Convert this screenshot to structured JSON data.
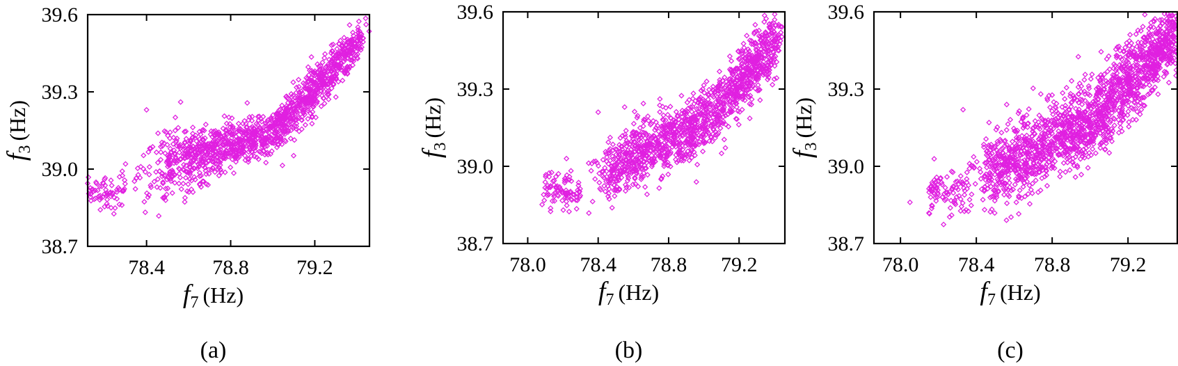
{
  "colors": {
    "marker": "#e020e0",
    "axis": "#000000"
  },
  "chart_data": [
    {
      "type": "scatter",
      "panel_label": "(a)",
      "xlabel": {
        "symbol": "f",
        "subscript": "7",
        "unit": "(Hz)"
      },
      "ylabel": {
        "symbol": "f",
        "subscript": "3",
        "unit": "(Hz)"
      },
      "xlim": [
        78.12,
        79.46
      ],
      "ylim": [
        38.7,
        39.6
      ],
      "xticks": [
        78.4,
        78.8,
        79.2
      ],
      "xtick_labels": [
        "78.4",
        "78.8",
        "79.2"
      ],
      "yticks": [
        38.7,
        39.0,
        39.3,
        39.6
      ],
      "ytick_labels": [
        "38.7",
        "39.0",
        "39.3",
        "39.6"
      ],
      "grid": false,
      "marker": "open-diamond",
      "point_count_estimate": 1500,
      "distribution": [
        {
          "x_range": [
            78.12,
            78.3
          ],
          "y_center": 38.92,
          "y_spread": 0.04,
          "density": "low"
        },
        {
          "x_range": [
            78.38,
            78.5
          ],
          "y_center": 38.95,
          "y_spread": 0.12,
          "density": "sparse"
        },
        {
          "x_range": [
            78.5,
            79.0
          ],
          "y_band": [
            38.88,
            39.22
          ],
          "density": "high"
        },
        {
          "x_range": [
            79.0,
            79.2
          ],
          "y_band": [
            39.05,
            39.38
          ],
          "density": "high"
        },
        {
          "x_range": [
            79.2,
            79.42
          ],
          "y_band": [
            39.3,
            39.5
          ],
          "density": "high"
        }
      ],
      "outliers": [
        [
          78.4,
          39.23
        ],
        [
          78.42,
          39.08
        ],
        [
          78.3,
          39.02
        ]
      ]
    },
    {
      "type": "scatter",
      "panel_label": "(b)",
      "xlabel": {
        "symbol": "f",
        "subscript": "7",
        "unit": "(Hz)"
      },
      "ylabel": {
        "symbol": "f",
        "subscript": "3",
        "unit": "(Hz)"
      },
      "xlim": [
        77.86,
        79.46
      ],
      "ylim": [
        38.7,
        39.6
      ],
      "xticks": [
        78.0,
        78.4,
        78.8,
        79.2
      ],
      "xtick_labels": [
        "78.0",
        "78.4",
        "78.8",
        "79.2"
      ],
      "yticks": [
        38.7,
        39.0,
        39.3,
        39.6
      ],
      "ytick_labels": [
        "38.7",
        "39.0",
        "39.3",
        "39.6"
      ],
      "grid": false,
      "marker": "open-diamond",
      "point_count_estimate": 1500,
      "distribution": [
        {
          "x_range": [
            78.08,
            78.3
          ],
          "y_center": 38.92,
          "y_spread": 0.04,
          "density": "low"
        },
        {
          "x_range": [
            78.38,
            78.5
          ],
          "y_center": 38.97,
          "y_spread": 0.1,
          "density": "sparse"
        },
        {
          "x_range": [
            78.5,
            79.0
          ],
          "y_band": [
            38.88,
            39.25
          ],
          "density": "high"
        },
        {
          "x_range": [
            79.0,
            79.2
          ],
          "y_band": [
            39.05,
            39.42
          ],
          "density": "high"
        },
        {
          "x_range": [
            79.2,
            79.42
          ],
          "y_band": [
            39.28,
            39.51
          ],
          "density": "high"
        }
      ],
      "outliers": [
        [
          78.4,
          39.21
        ],
        [
          78.55,
          39.23
        ],
        [
          78.22,
          39.03
        ]
      ]
    },
    {
      "type": "scatter",
      "panel_label": "(c)",
      "xlabel": {
        "symbol": "f",
        "subscript": "7",
        "unit": "(Hz)"
      },
      "ylabel": {
        "symbol": "f",
        "subscript": "3",
        "unit": "(Hz)"
      },
      "xlim": [
        77.86,
        79.46
      ],
      "ylim": [
        38.7,
        39.6
      ],
      "xticks": [
        78.0,
        78.4,
        78.8,
        79.2
      ],
      "xtick_labels": [
        "78.0",
        "78.4",
        "78.8",
        "79.2"
      ],
      "yticks": [
        38.7,
        39.0,
        39.3,
        39.6
      ],
      "ytick_labels": [
        "38.7",
        "39.0",
        "39.3",
        "39.6"
      ],
      "grid": false,
      "marker": "open-diamond",
      "point_count_estimate": 1800,
      "distribution": [
        {
          "x_range": [
            78.15,
            78.38
          ],
          "y_center": 38.92,
          "y_spread": 0.05,
          "density": "low"
        },
        {
          "x_range": [
            78.38,
            78.5
          ],
          "y_center": 38.98,
          "y_spread": 0.12,
          "density": "medium"
        },
        {
          "x_range": [
            78.5,
            79.0
          ],
          "y_band": [
            38.85,
            39.3
          ],
          "density": "high"
        },
        {
          "x_range": [
            79.0,
            79.2
          ],
          "y_band": [
            39.05,
            39.45
          ],
          "density": "high"
        },
        {
          "x_range": [
            79.2,
            79.46
          ],
          "y_band": [
            39.28,
            39.55
          ],
          "density": "high"
        }
      ],
      "outliers": [
        [
          78.05,
          38.86
        ],
        [
          78.33,
          39.22
        ],
        [
          78.27,
          38.81
        ],
        [
          78.56,
          39.24
        ]
      ]
    }
  ]
}
